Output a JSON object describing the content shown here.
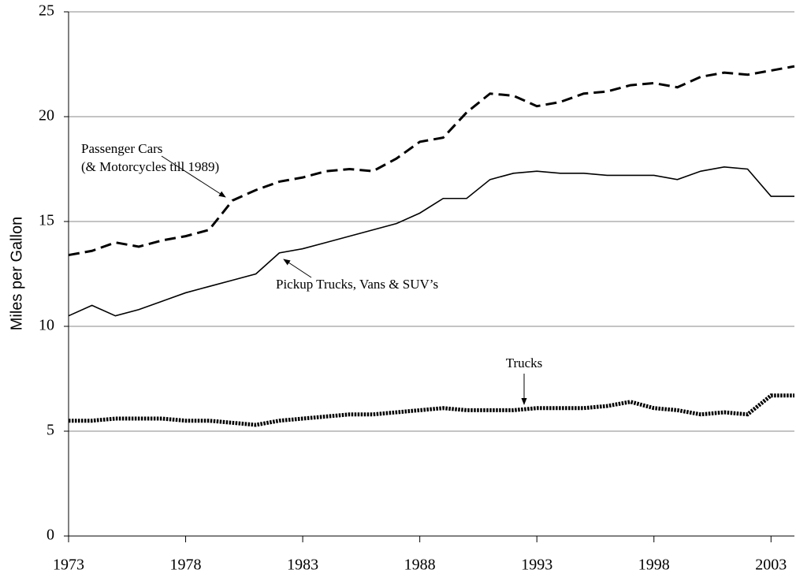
{
  "chart_data": {
    "type": "line",
    "y_label": "Miles per Gallon",
    "x": [
      1973,
      1974,
      1975,
      1976,
      1977,
      1978,
      1979,
      1980,
      1981,
      1982,
      1983,
      1984,
      1985,
      1986,
      1987,
      1988,
      1989,
      1990,
      1991,
      1992,
      1993,
      1994,
      1995,
      1996,
      1997,
      1998,
      1999,
      2000,
      2001,
      2002,
      2003,
      2004
    ],
    "series": [
      {
        "color": "#000000",
        "dash": "dashed",
        "values": [
          13.4,
          13.6,
          14.0,
          13.8,
          14.1,
          14.3,
          14.6,
          16.0,
          16.5,
          16.9,
          17.1,
          17.4,
          17.5,
          17.4,
          18.0,
          18.8,
          19.0,
          20.2,
          21.1,
          21.0,
          20.5,
          20.7,
          21.1,
          21.2,
          21.5,
          21.6,
          21.4,
          21.9,
          22.1,
          22.0,
          22.2,
          22.4
        ]
      },
      {
        "color": "#000000",
        "dash": "solid",
        "values": [
          10.5,
          11.0,
          10.5,
          10.8,
          11.2,
          11.6,
          11.9,
          12.2,
          12.5,
          13.5,
          13.7,
          14.0,
          14.3,
          14.6,
          14.9,
          15.4,
          16.1,
          16.1,
          17.0,
          17.3,
          17.4,
          17.3,
          17.3,
          17.2,
          17.2,
          17.2,
          17.0,
          17.4,
          17.6,
          17.5,
          16.2,
          16.2
        ]
      },
      {
        "color": "#000000",
        "dash": "dotted",
        "values": [
          5.5,
          5.5,
          5.6,
          5.6,
          5.6,
          5.5,
          5.5,
          5.4,
          5.3,
          5.5,
          5.6,
          5.7,
          5.8,
          5.8,
          5.9,
          6.0,
          6.1,
          6.0,
          6.0,
          6.0,
          6.1,
          6.1,
          6.1,
          6.2,
          6.4,
          6.1,
          6.0,
          5.8,
          5.9,
          5.8,
          6.7,
          6.7
        ]
      }
    ],
    "annotations": [
      "Passenger Cars",
      "(& Motorcycles till 1989)",
      "Pickup Trucks, Vans & SUV’s",
      "Trucks"
    ],
    "xlim": [
      1973,
      2004
    ],
    "xticks": [
      1973,
      1978,
      1983,
      1988,
      1993,
      1998,
      2003
    ],
    "ylim": [
      0,
      25
    ],
    "yticks": [
      0,
      5,
      10,
      15,
      20,
      25
    ],
    "grid": true
  }
}
